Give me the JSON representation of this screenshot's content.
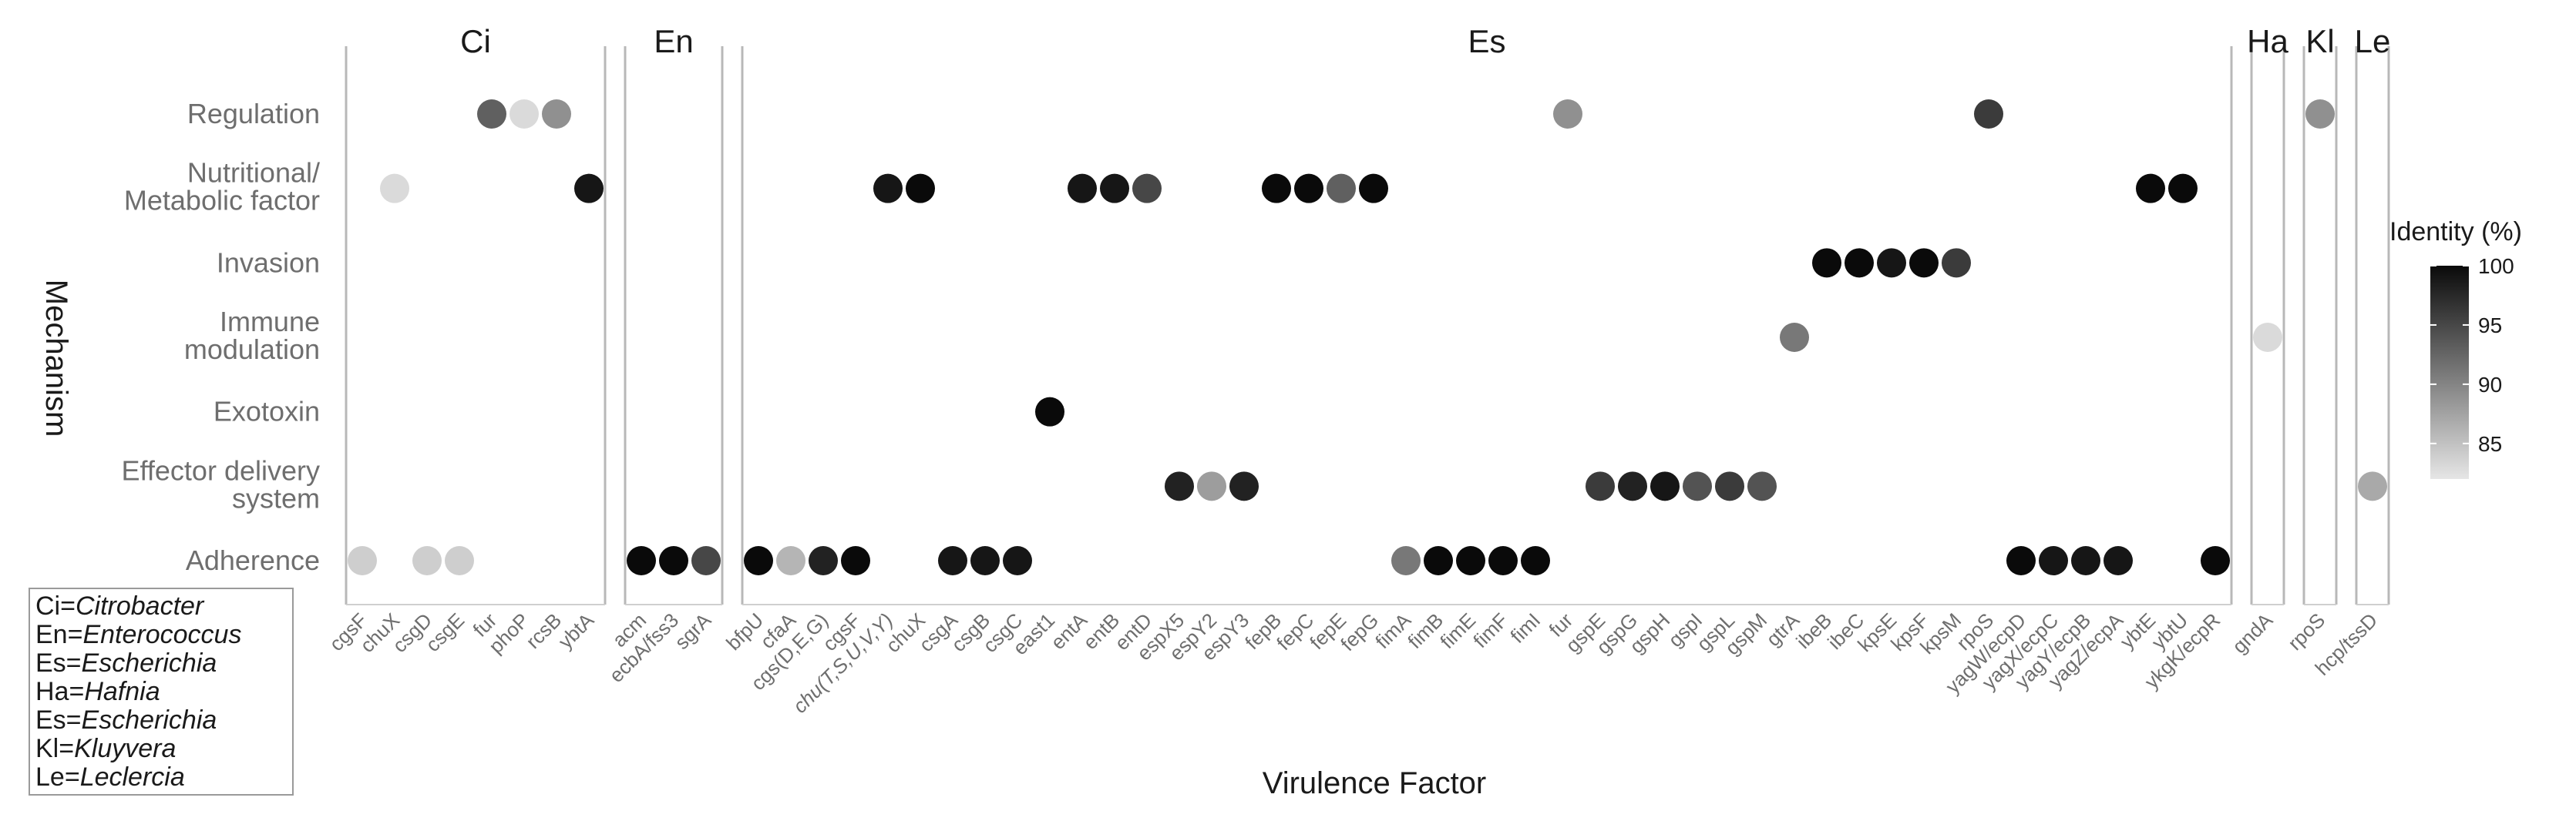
{
  "chart_data": {
    "type": "scatter",
    "xlabel": "Virulence Factor",
    "ylabel": "Mechanism",
    "rows": [
      "Adherence",
      "Effector delivery system",
      "Exotoxin",
      "Immune modulation",
      "Invasion",
      "Nutritional/ Metabolic factor",
      "Regulation"
    ],
    "row_label_lines": [
      [
        "Regulation"
      ],
      [
        "Nutritional/",
        "Metabolic factor"
      ],
      [
        "Invasion"
      ],
      [
        "Immune",
        "modulation"
      ],
      [
        "Exotoxin"
      ],
      [
        "Effector delivery",
        "system"
      ],
      [
        "Adherence"
      ]
    ],
    "facets": [
      {
        "label": "Ci",
        "factors": [
          "cgsF",
          "chuX",
          "csgD",
          "csgE",
          "fur",
          "phoP",
          "rcsB",
          "ybtA"
        ]
      },
      {
        "label": "En",
        "factors": [
          "acm",
          "ecbA/fss3",
          "sgrA"
        ]
      },
      {
        "label": "Es",
        "factors": [
          "bfpU",
          "cfaA",
          "cgs(D,E,G)",
          "cgsF",
          "chu(T,S,U,V,Y)",
          "chuX",
          "csgA",
          "csgB",
          "csgC",
          "east1",
          "entA",
          "entB",
          "entD",
          "espX5",
          "espY2",
          "espY3",
          "fepB",
          "fepC",
          "fepE",
          "fepG",
          "fimA",
          "fimB",
          "fimE",
          "fimF",
          "fimI",
          "fur",
          "gspE",
          "gspG",
          "gspH",
          "gspI",
          "gspL",
          "gspM",
          "gtrA",
          "ibeB",
          "ibeC",
          "kpsE",
          "kpsF",
          "kpsM",
          "rpoS",
          "yagW/ecpD",
          "yagX/ecpC",
          "yagY/ecpB",
          "yagZ/ecpA",
          "ybtE",
          "ybtU",
          "ykgK/ecpR"
        ]
      },
      {
        "label": "Ha",
        "factors": [
          "gndA"
        ]
      },
      {
        "label": "Kl",
        "factors": [
          "rpoS"
        ]
      },
      {
        "label": "Le",
        "factors": [
          "hcp/tssD"
        ]
      }
    ],
    "points": [
      {
        "facet": "Ci",
        "factor": "cgsF",
        "row": "Adherence",
        "identity": 84
      },
      {
        "facet": "Ci",
        "factor": "chuX",
        "row": "Nutritional/ Metabolic factor",
        "identity": 83
      },
      {
        "facet": "Ci",
        "factor": "csgD",
        "row": "Adherence",
        "identity": 84
      },
      {
        "facet": "Ci",
        "factor": "csgE",
        "row": "Adherence",
        "identity": 84
      },
      {
        "facet": "Ci",
        "factor": "fur",
        "row": "Regulation",
        "identity": 93
      },
      {
        "facet": "Ci",
        "factor": "phoP",
        "row": "Regulation",
        "identity": 83
      },
      {
        "facet": "Ci",
        "factor": "rcsB",
        "row": "Regulation",
        "identity": 89
      },
      {
        "facet": "Ci",
        "factor": "ybtA",
        "row": "Nutritional/ Metabolic factor",
        "identity": 99
      },
      {
        "facet": "En",
        "factor": "acm",
        "row": "Adherence",
        "identity": 100
      },
      {
        "facet": "En",
        "factor": "ecbA/fss3",
        "row": "Adherence",
        "identity": 100
      },
      {
        "facet": "En",
        "factor": "sgrA",
        "row": "Adherence",
        "identity": 95
      },
      {
        "facet": "Es",
        "factor": "bfpU",
        "row": "Adherence",
        "identity": 100
      },
      {
        "facet": "Es",
        "factor": "cfaA",
        "row": "Adherence",
        "identity": 86
      },
      {
        "facet": "Es",
        "factor": "cgs(D,E,G)",
        "row": "Adherence",
        "identity": 98
      },
      {
        "facet": "Es",
        "factor": "cgsF",
        "row": "Adherence",
        "identity": 100
      },
      {
        "facet": "Es",
        "factor": "chu(T,S,U,V,Y)",
        "row": "Nutritional/ Metabolic factor",
        "identity": 99
      },
      {
        "facet": "Es",
        "factor": "chuX",
        "row": "Nutritional/ Metabolic factor",
        "identity": 100
      },
      {
        "facet": "Es",
        "factor": "csgA",
        "row": "Adherence",
        "identity": 99
      },
      {
        "facet": "Es",
        "factor": "csgB",
        "row": "Adherence",
        "identity": 99
      },
      {
        "facet": "Es",
        "factor": "csgC",
        "row": "Adherence",
        "identity": 99
      },
      {
        "facet": "Es",
        "factor": "east1",
        "row": "Exotoxin",
        "identity": 100
      },
      {
        "facet": "Es",
        "factor": "entA",
        "row": "Nutritional/ Metabolic factor",
        "identity": 99
      },
      {
        "facet": "Es",
        "factor": "entB",
        "row": "Nutritional/ Metabolic factor",
        "identity": 99
      },
      {
        "facet": "Es",
        "factor": "entD",
        "row": "Nutritional/ Metabolic factor",
        "identity": 95
      },
      {
        "facet": "Es",
        "factor": "espX5",
        "row": "Effector delivery system",
        "identity": 98
      },
      {
        "facet": "Es",
        "factor": "espY2",
        "row": "Effector delivery system",
        "identity": 88
      },
      {
        "facet": "Es",
        "factor": "espY3",
        "row": "Effector delivery system",
        "identity": 98
      },
      {
        "facet": "Es",
        "factor": "fepB",
        "row": "Nutritional/ Metabolic factor",
        "identity": 100
      },
      {
        "facet": "Es",
        "factor": "fepC",
        "row": "Nutritional/ Metabolic factor",
        "identity": 100
      },
      {
        "facet": "Es",
        "factor": "fepE",
        "row": "Nutritional/ Metabolic factor",
        "identity": 93
      },
      {
        "facet": "Es",
        "factor": "fepG",
        "row": "Nutritional/ Metabolic factor",
        "identity": 100
      },
      {
        "facet": "Es",
        "factor": "fimA",
        "row": "Adherence",
        "identity": 91
      },
      {
        "facet": "Es",
        "factor": "fimB",
        "row": "Adherence",
        "identity": 100
      },
      {
        "facet": "Es",
        "factor": "fimE",
        "row": "Adherence",
        "identity": 100
      },
      {
        "facet": "Es",
        "factor": "fimF",
        "row": "Adherence",
        "identity": 100
      },
      {
        "facet": "Es",
        "factor": "fimI",
        "row": "Adherence",
        "identity": 100
      },
      {
        "facet": "Es",
        "factor": "fur",
        "row": "Regulation",
        "identity": 89
      },
      {
        "facet": "Es",
        "factor": "gspE",
        "row": "Effector delivery system",
        "identity": 96
      },
      {
        "facet": "Es",
        "factor": "gspG",
        "row": "Effector delivery system",
        "identity": 98
      },
      {
        "facet": "Es",
        "factor": "gspH",
        "row": "Effector delivery system",
        "identity": 99
      },
      {
        "facet": "Es",
        "factor": "gspI",
        "row": "Effector delivery system",
        "identity": 94
      },
      {
        "facet": "Es",
        "factor": "gspL",
        "row": "Effector delivery system",
        "identity": 96
      },
      {
        "facet": "Es",
        "factor": "gspM",
        "row": "Effector delivery system",
        "identity": 94
      },
      {
        "facet": "Es",
        "factor": "gtrA",
        "row": "Immune modulation",
        "identity": 91
      },
      {
        "facet": "Es",
        "factor": "ibeB",
        "row": "Invasion",
        "identity": 100
      },
      {
        "facet": "Es",
        "factor": "ibeC",
        "row": "Invasion",
        "identity": 100
      },
      {
        "facet": "Es",
        "factor": "kpsE",
        "row": "Invasion",
        "identity": 99
      },
      {
        "facet": "Es",
        "factor": "kpsF",
        "row": "Invasion",
        "identity": 100
      },
      {
        "facet": "Es",
        "factor": "kpsM",
        "row": "Invasion",
        "identity": 96
      },
      {
        "facet": "Es",
        "factor": "rpoS",
        "row": "Regulation",
        "identity": 96
      },
      {
        "facet": "Es",
        "factor": "yagW/ecpD",
        "row": "Adherence",
        "identity": 100
      },
      {
        "facet": "Es",
        "factor": "yagX/ecpC",
        "row": "Adherence",
        "identity": 99
      },
      {
        "facet": "Es",
        "factor": "yagY/ecpB",
        "row": "Adherence",
        "identity": 99
      },
      {
        "facet": "Es",
        "factor": "yagZ/ecpA",
        "row": "Adherence",
        "identity": 99
      },
      {
        "facet": "Es",
        "factor": "ybtE",
        "row": "Nutritional/ Metabolic factor",
        "identity": 100
      },
      {
        "facet": "Es",
        "factor": "ybtU",
        "row": "Nutritional/ Metabolic factor",
        "identity": 100
      },
      {
        "facet": "Es",
        "factor": "ykgK/ecpR",
        "row": "Adherence",
        "identity": 100
      },
      {
        "facet": "Ha",
        "factor": "gndA",
        "row": "Immune modulation",
        "identity": 83
      },
      {
        "facet": "Kl",
        "factor": "rpoS",
        "row": "Regulation",
        "identity": 89
      },
      {
        "facet": "Le",
        "factor": "hcp/tssD",
        "row": "Effector delivery system",
        "identity": 87
      }
    ],
    "color_scale": {
      "title": "Identity (%)",
      "min": 82,
      "max": 100,
      "ticks": [
        85,
        90,
        95,
        100
      ],
      "low_color": "#e6e6e6",
      "high_color": "#0a0a0a"
    },
    "genus_legend": [
      {
        "abbr": "Ci",
        "name": "Citrobacter"
      },
      {
        "abbr": "En",
        "name": "Enterococcus"
      },
      {
        "abbr": "Es",
        "name": "Escherichia"
      },
      {
        "abbr": "Ha",
        "name": "Hafnia"
      },
      {
        "abbr": "Es",
        "name": "Escherichia"
      },
      {
        "abbr": "Kl",
        "name": "Kluyvera"
      },
      {
        "abbr": "Le",
        "name": "Leclercia"
      }
    ]
  }
}
